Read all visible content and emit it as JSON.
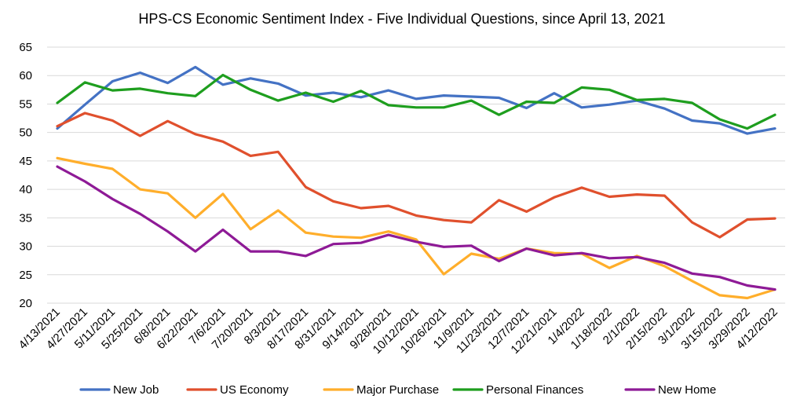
{
  "chart_data": {
    "type": "line",
    "title": "HPS-CS Economic Sentiment Index - Five Individual Questions, since April 13, 2021",
    "xlabel": "",
    "ylabel": "",
    "ylim": [
      20,
      65
    ],
    "yticks": [
      20,
      25,
      30,
      35,
      40,
      45,
      50,
      55,
      60,
      65
    ],
    "grid": true,
    "legend_position": "bottom",
    "categories": [
      "4/13/2021",
      "4/27/2021",
      "5/11/2021",
      "5/25/2021",
      "6/8/2021",
      "6/22/2021",
      "7/6/2021",
      "7/20/2021",
      "8/3/2021",
      "8/17/2021",
      "8/31/2021",
      "9/14/2021",
      "9/28/2021",
      "10/12/2021",
      "10/26/2021",
      "11/9/2021",
      "11/23/2021",
      "12/7/2021",
      "12/21/2021",
      "1/4/2022",
      "1/18/2022",
      "2/1/2022",
      "2/15/2022",
      "3/1/2022",
      "3/15/2022",
      "3/29/2022",
      "4/12/2022"
    ],
    "series": [
      {
        "name": "New Job",
        "color": "#4472C4",
        "values": [
          50.7,
          54.9,
          59.0,
          60.5,
          58.7,
          61.5,
          58.4,
          59.5,
          58.6,
          56.5,
          57.0,
          56.2,
          57.4,
          55.9,
          56.5,
          56.3,
          56.1,
          54.3,
          56.9,
          54.4,
          54.9,
          55.6,
          54.2,
          52.1,
          51.6,
          49.8,
          50.7
        ]
      },
      {
        "name": "US Economy",
        "color": "#E0502D",
        "values": [
          51.1,
          53.4,
          52.1,
          49.4,
          52.0,
          49.7,
          48.4,
          45.9,
          46.6,
          40.4,
          37.9,
          36.7,
          37.1,
          35.4,
          34.6,
          34.2,
          38.1,
          36.1,
          38.6,
          40.3,
          38.7,
          39.1,
          38.9,
          34.2,
          31.6,
          34.7,
          34.9
        ]
      },
      {
        "name": "Major Purchase",
        "color": "#FFAE2B",
        "values": [
          45.5,
          44.5,
          43.6,
          40.0,
          39.3,
          35.0,
          39.2,
          33.0,
          36.3,
          32.4,
          31.7,
          31.5,
          32.6,
          31.2,
          25.1,
          28.7,
          27.8,
          29.6,
          28.8,
          28.7,
          26.2,
          28.3,
          26.5,
          23.9,
          21.4,
          20.9,
          22.4
        ]
      },
      {
        "name": "Personal Finances",
        "color": "#1E9E1E",
        "values": [
          55.2,
          58.8,
          57.4,
          57.7,
          56.9,
          56.4,
          60.1,
          57.5,
          55.6,
          57.0,
          55.4,
          57.3,
          54.8,
          54.4,
          54.4,
          55.6,
          53.1,
          55.4,
          55.2,
          57.9,
          57.5,
          55.7,
          55.9,
          55.2,
          52.3,
          50.7,
          53.1
        ]
      },
      {
        "name": "New Home",
        "color": "#8E1A96",
        "values": [
          44.0,
          41.4,
          38.3,
          35.7,
          32.6,
          29.1,
          32.9,
          29.1,
          29.1,
          28.3,
          30.4,
          30.6,
          32.0,
          30.8,
          29.9,
          30.1,
          27.4,
          29.6,
          28.4,
          28.8,
          27.9,
          28.1,
          27.1,
          25.2,
          24.6,
          23.1,
          22.4
        ]
      }
    ]
  }
}
